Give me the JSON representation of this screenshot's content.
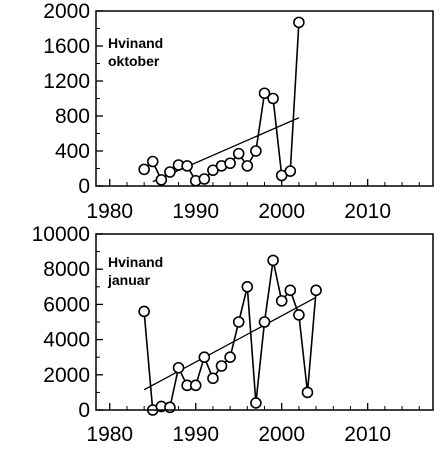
{
  "chart_data": [
    {
      "type": "line",
      "title": "Hvinand\noktober",
      "x_ticks": [
        1980,
        1990,
        2000,
        2010
      ],
      "xlim": [
        1978.4,
        2017.6
      ],
      "y_ticks": [
        0,
        400,
        800,
        1200,
        1600,
        2000
      ],
      "ylim": [
        0,
        2000
      ],
      "grid": false,
      "series": [
        {
          "x": [
            1984,
            1985,
            1986,
            1987,
            1988,
            1989,
            1990,
            1991,
            1992,
            1993,
            1994,
            1995,
            1996,
            1997,
            1998,
            1999,
            2000,
            2001,
            2002
          ],
          "values": [
            190,
            280,
            70,
            160,
            240,
            230,
            60,
            80,
            180,
            230,
            260,
            370,
            230,
            400,
            1060,
            1000,
            120,
            170,
            1870
          ]
        }
      ],
      "trendline": {
        "x": [
          1985,
          2002
        ],
        "y": [
          50,
          780
        ]
      }
    },
    {
      "type": "line",
      "title": "Hvinand\njanuar",
      "x_ticks": [
        1980,
        1990,
        2000,
        2010
      ],
      "xlim": [
        1978.4,
        2017.6
      ],
      "y_ticks": [
        0,
        2000,
        4000,
        6000,
        8000,
        10000
      ],
      "ylim": [
        0,
        10000
      ],
      "grid": false,
      "series": [
        {
          "x": [
            1984,
            1985,
            1986,
            1987,
            1988,
            1989,
            1990,
            1991,
            1992,
            1993,
            1994,
            1995,
            1996,
            1997,
            1998,
            1999,
            2000,
            2001,
            2002,
            2003,
            2004
          ],
          "values": [
            5600,
            0,
            200,
            150,
            2400,
            1400,
            1400,
            3000,
            1800,
            2500,
            3000,
            5000,
            7000,
            400,
            5000,
            8500,
            6200,
            6800,
            5400,
            1000,
            6800
          ]
        }
      ],
      "trendline": {
        "x": [
          1984,
          2004
        ],
        "y": [
          1150,
          6400
        ]
      }
    }
  ]
}
